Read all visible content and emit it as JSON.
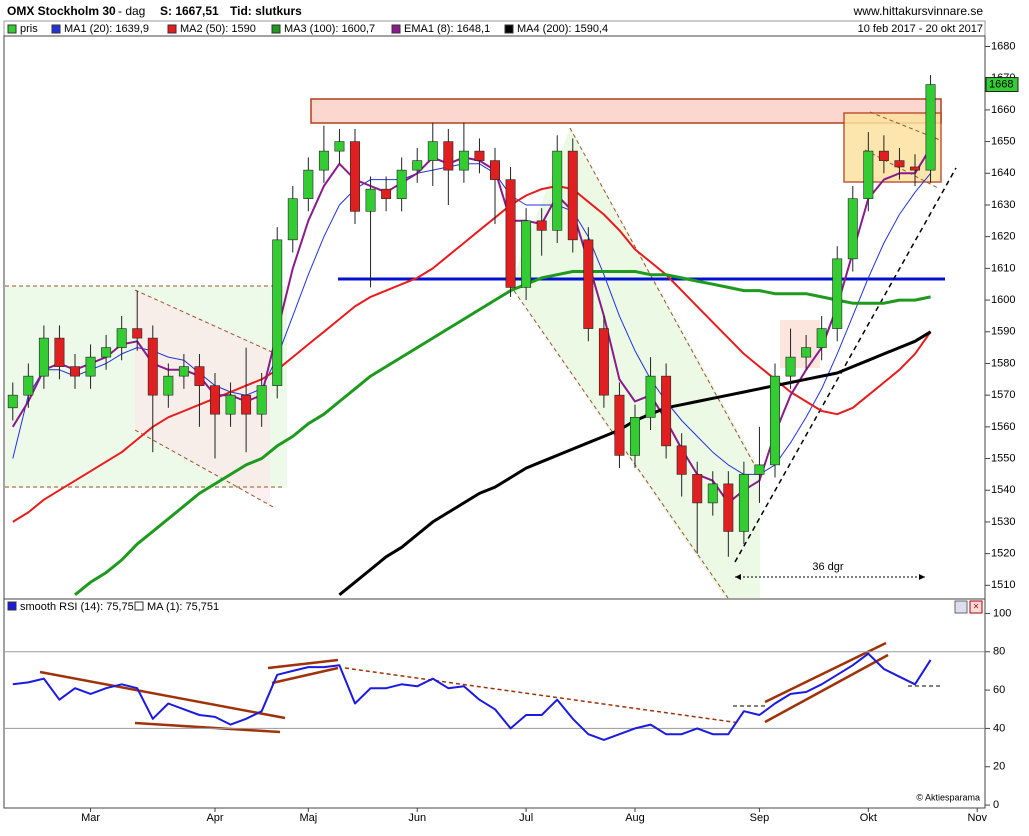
{
  "header": {
    "title": "OMX Stockholm 30",
    "period": "- dag",
    "price": "S: 1667,51",
    "mode": "Tid: slutkurs",
    "site": "www.hittakursvinnare.se"
  },
  "chart_data": [
    {
      "type": "candlestick",
      "name": "pris",
      "subtitle": "10 feb 2017 - 20 okt 2017",
      "annotation": "36 dgr",
      "up_color": "#33cc33",
      "down_color": "#e02020",
      "categories": [
        null,
        null,
        null,
        null,
        null,
        "Mar",
        null,
        null,
        null,
        null,
        null,
        null,
        null,
        "Apr",
        null,
        null,
        null,
        null,
        null,
        "Maj",
        null,
        null,
        null,
        null,
        null,
        null,
        "Jun",
        null,
        null,
        null,
        null,
        null,
        null,
        "Jul",
        null,
        null,
        null,
        null,
        null,
        null,
        "Aug",
        null,
        null,
        null,
        null,
        null,
        null,
        null,
        "Sep",
        null,
        null,
        null,
        null,
        null,
        null,
        "Okt",
        null,
        null,
        null,
        null,
        null,
        null,
        "Nov"
      ],
      "open": [
        1566,
        1570,
        1576,
        1588,
        1579,
        1576,
        1582,
        1585,
        1591,
        1588,
        1570,
        1576,
        1579,
        1573,
        1564,
        1570,
        1564,
        1573,
        1619,
        1632,
        1641,
        1647,
        1650,
        1628,
        1635,
        1632,
        1641,
        1644,
        1650,
        1641,
        1647,
        1644,
        1638,
        1604,
        1625,
        1622,
        1647,
        1619,
        1591,
        1570,
        1551,
        1563,
        1576,
        1554,
        1545,
        1536,
        1542,
        1527,
        1545,
        1548,
        1576,
        1582,
        1585,
        1591,
        1613,
        1632,
        1647,
        1644,
        1642,
        1641,
        null,
        null,
        null
      ],
      "high": [
        1574,
        1580,
        1592,
        1592,
        1583,
        1586,
        1589,
        1595,
        1603,
        1592,
        1580,
        1583,
        1583,
        1577,
        1574,
        1585,
        1577,
        1623,
        1636,
        1645,
        1655,
        1654,
        1654,
        1639,
        1639,
        1645,
        1648,
        1656,
        1654,
        1656,
        1651,
        1648,
        1642,
        1629,
        1629,
        1652,
        1651,
        1623,
        1595,
        1574,
        1567,
        1582,
        1580,
        1558,
        1549,
        1546,
        1546,
        1549,
        1560,
        1580,
        1591,
        1589,
        1595,
        1617,
        1636,
        1653,
        1652,
        1648,
        1646,
        1671,
        null,
        null,
        null
      ],
      "low": [
        1562,
        1566,
        1572,
        1575,
        1572,
        1572,
        1578,
        1581,
        1584,
        1552,
        1566,
        1572,
        1560,
        1550,
        1560,
        1552,
        1560,
        1569,
        1615,
        1628,
        1637,
        1643,
        1624,
        1604,
        1628,
        1628,
        1637,
        1636,
        1630,
        1637,
        1640,
        1624,
        1601,
        1600,
        1614,
        1618,
        1615,
        1587,
        1566,
        1547,
        1547,
        1559,
        1550,
        1538,
        1520,
        1532,
        1519,
        1523,
        1536,
        1544,
        1572,
        1578,
        1581,
        1587,
        1609,
        1628,
        1640,
        1638,
        1636,
        1637,
        null,
        null,
        null
      ],
      "close": [
        1570,
        1576,
        1588,
        1579,
        1576,
        1582,
        1585,
        1591,
        1588,
        1570,
        1576,
        1579,
        1573,
        1564,
        1570,
        1564,
        1573,
        1619,
        1632,
        1641,
        1647,
        1650,
        1628,
        1635,
        1632,
        1641,
        1644,
        1650,
        1641,
        1647,
        1644,
        1638,
        1604,
        1625,
        1622,
        1647,
        1619,
        1591,
        1570,
        1551,
        1563,
        1576,
        1554,
        1545,
        1536,
        1542,
        1527,
        1545,
        1548,
        1576,
        1582,
        1585,
        1591,
        1613,
        1632,
        1647,
        1644,
        1642,
        1641,
        1668,
        null,
        null,
        null
      ],
      "series": [
        {
          "name": "MA1 (20): 1639,9",
          "color": "#2233dd",
          "width": 1,
          "values": [
            1550,
            1570,
            1578,
            1578,
            1576,
            1578,
            1580,
            1583,
            1585,
            1584,
            1582,
            1581,
            1577,
            1573,
            1571,
            1570,
            1572,
            1582,
            1595,
            1608,
            1620,
            1630,
            1635,
            1638,
            1638,
            1638,
            1640,
            1641,
            1642,
            1643,
            1643,
            1640,
            1633,
            1630,
            1630,
            1630,
            1628,
            1620,
            1608,
            1595,
            1584,
            1575,
            1568,
            1562,
            1557,
            1552,
            1548,
            1545,
            1545,
            1548,
            1555,
            1563,
            1572,
            1583,
            1595,
            1607,
            1618,
            1627,
            1634,
            1640,
            null,
            null,
            null
          ]
        },
        {
          "name": "MA2 (50): 1590",
          "color": "#e81c1c",
          "width": 2,
          "values": [
            1530,
            1533,
            1537,
            1540,
            1543,
            1546,
            1549,
            1552,
            1556,
            1560,
            1563,
            1565,
            1567,
            1569,
            1571,
            1573,
            1575,
            1578,
            1582,
            1586,
            1590,
            1594,
            1598,
            1601,
            1603,
            1605,
            1607,
            1610,
            1614,
            1618,
            1622,
            1626,
            1630,
            1633,
            1635,
            1636,
            1635,
            1631,
            1627,
            1622,
            1616,
            1612,
            1608,
            1603,
            1598,
            1593,
            1588,
            1583,
            1579,
            1575,
            1571,
            1568,
            1565,
            1564,
            1566,
            1570,
            1574,
            1578,
            1583,
            1590,
            null,
            null,
            null
          ]
        },
        {
          "name": "MA3 (100): 1600,7",
          "color": "#1e9a1e",
          "width": 3,
          "values": [
            null,
            null,
            null,
            null,
            1507,
            1511,
            1514,
            1518,
            1523,
            1527,
            1531,
            1535,
            1539,
            1542,
            1545,
            1548,
            1550,
            1554,
            1557,
            1561,
            1564,
            1568,
            1572,
            1576,
            1579,
            1582,
            1585,
            1588,
            1591,
            1594,
            1597,
            1600,
            1603,
            1605,
            1607,
            1608,
            1609,
            1609,
            1609,
            1609,
            1609,
            1608,
            1608,
            1607,
            1606,
            1605,
            1604,
            1603,
            1603,
            1602,
            1602,
            1602,
            1601,
            1600,
            1599,
            1599,
            1599,
            1600,
            1600,
            1601,
            null,
            null,
            null
          ]
        },
        {
          "name": "EMA1 (8): 1648,1",
          "color": "#8b1a8b",
          "width": 2,
          "values": [
            1560,
            1568,
            1578,
            1580,
            1578,
            1580,
            1582,
            1586,
            1587,
            1580,
            1578,
            1578,
            1576,
            1570,
            1570,
            1568,
            1570,
            1590,
            1610,
            1625,
            1636,
            1643,
            1638,
            1636,
            1634,
            1637,
            1640,
            1645,
            1643,
            1645,
            1644,
            1641,
            1625,
            1625,
            1624,
            1633,
            1628,
            1612,
            1595,
            1575,
            1568,
            1570,
            1562,
            1553,
            1545,
            1543,
            1536,
            1540,
            1543,
            1558,
            1570,
            1578,
            1585,
            1598,
            1615,
            1632,
            1638,
            1640,
            1640,
            1648,
            null,
            null,
            null
          ]
        },
        {
          "name": "MA4 (200): 1590,4",
          "color": "#000000",
          "width": 3,
          "values": [
            null,
            null,
            null,
            null,
            null,
            null,
            null,
            null,
            null,
            null,
            null,
            null,
            null,
            null,
            null,
            null,
            null,
            null,
            null,
            null,
            null,
            1507,
            1511,
            1515,
            1519,
            1522,
            1526,
            1530,
            1533,
            1536,
            1539,
            1541,
            1544,
            1547,
            1549,
            1551,
            1553,
            1555,
            1557,
            1559,
            1562,
            1564,
            1566,
            1567,
            1568,
            1569,
            1570,
            1571,
            1572,
            1573,
            1574,
            1575,
            1576,
            1577,
            1579,
            1581,
            1583,
            1585,
            1587,
            1590,
            null,
            null,
            null
          ]
        }
      ],
      "ylim": [
        1506,
        1683
      ],
      "yticks": [
        1510,
        1520,
        1530,
        1540,
        1550,
        1560,
        1570,
        1580,
        1590,
        1600,
        1610,
        1620,
        1630,
        1640,
        1650,
        1660,
        1670,
        1680
      ]
    },
    {
      "type": "line",
      "credit": "© Aktiesparama",
      "series": [
        {
          "name": "smooth RSI (14): 75,751",
          "color": "#1a1ae0",
          "values": [
            63,
            64,
            66,
            55,
            61,
            58,
            61,
            63,
            61,
            45,
            53,
            50,
            47,
            46,
            42,
            45,
            49,
            68,
            70,
            72,
            72,
            73,
            53,
            61,
            61,
            63,
            62,
            66,
            61,
            62,
            55,
            50,
            40,
            47,
            47,
            55,
            45,
            37,
            34,
            37,
            40,
            42,
            37,
            37,
            40,
            37,
            37,
            49,
            47,
            53,
            58,
            59,
            63,
            68,
            73,
            79,
            71,
            67,
            63,
            75.751,
            null,
            null,
            null
          ]
        },
        {
          "name": "MA (1): 75,751",
          "color": "#ffffff"
        }
      ],
      "ref_lines": [
        40,
        80
      ],
      "ylim": [
        -1,
        107
      ],
      "yticks": [
        0,
        20,
        40,
        60,
        80,
        100
      ]
    }
  ]
}
